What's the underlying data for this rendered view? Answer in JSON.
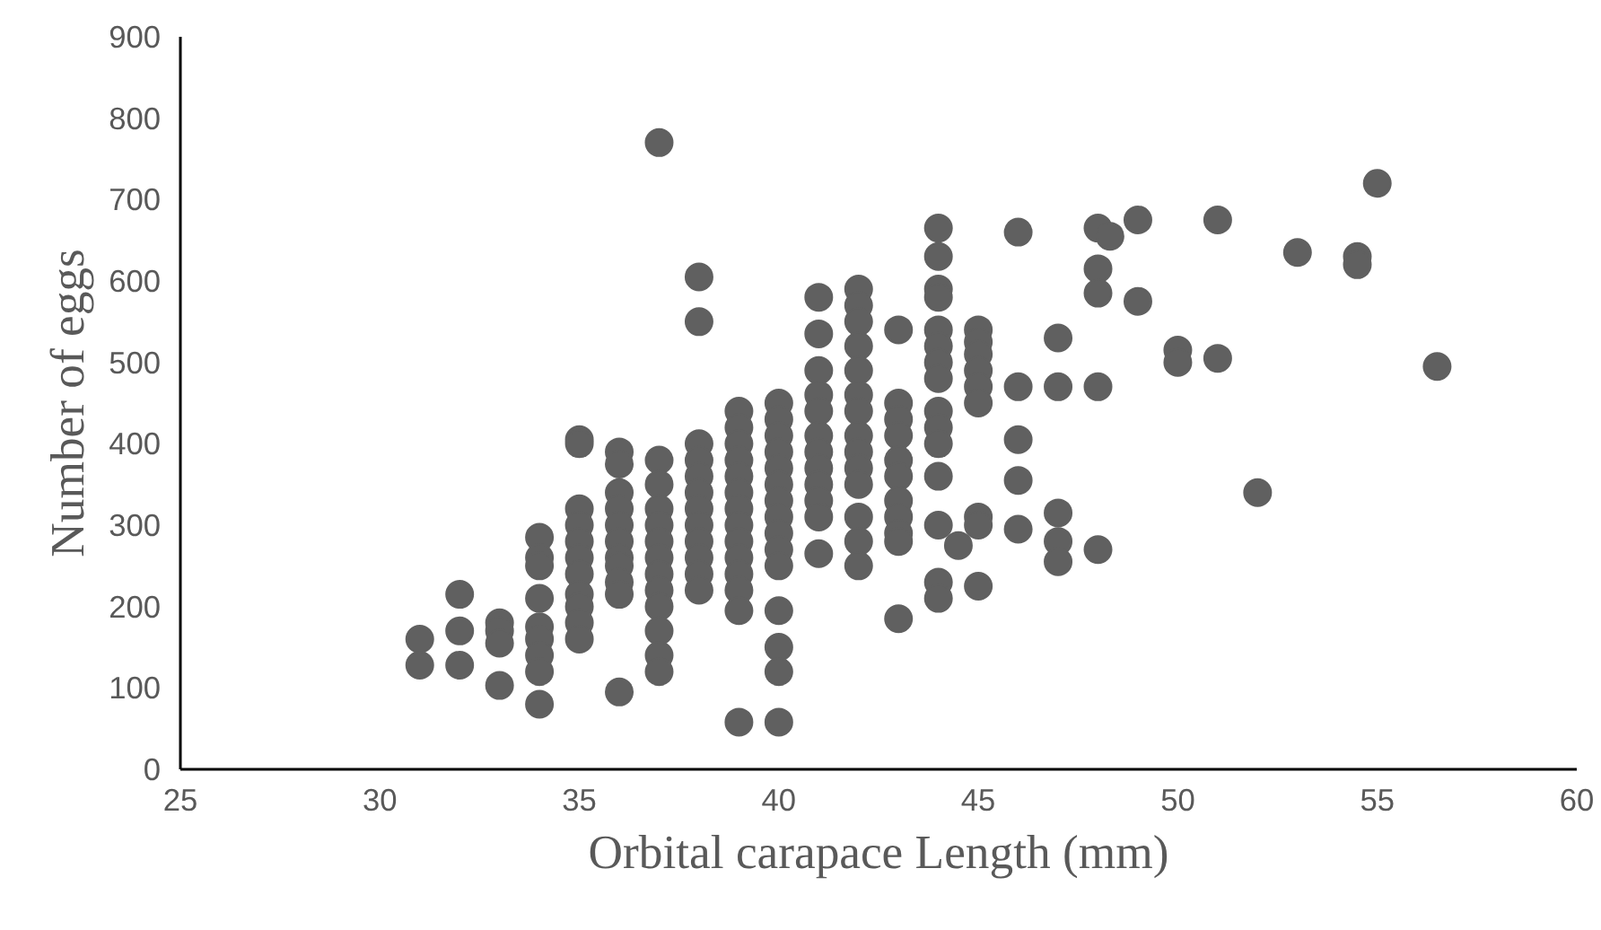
{
  "chart_data": {
    "type": "scatter",
    "xlabel": "Orbital carapace Length (mm)",
    "ylabel": "Number of eggs",
    "xlim": [
      25,
      60
    ],
    "ylim": [
      0,
      900
    ],
    "xticks": [
      25,
      30,
      35,
      40,
      45,
      50,
      55,
      60
    ],
    "yticks": [
      0,
      100,
      200,
      300,
      400,
      500,
      600,
      700,
      800,
      900
    ],
    "grid": false,
    "marker": "circle",
    "series": [
      {
        "color": "#606060",
        "x": [
          31,
          31,
          32,
          32,
          32,
          33,
          33,
          33,
          33,
          34,
          34,
          34,
          34,
          34,
          34,
          34,
          34,
          34,
          35,
          35,
          35,
          35,
          35,
          35,
          35,
          35,
          35,
          35,
          35,
          36,
          36,
          36,
          36,
          36,
          36,
          36,
          36,
          36,
          36,
          36,
          37,
          37,
          37,
          37,
          37,
          37,
          37,
          37,
          37,
          37,
          37,
          37,
          37,
          38,
          38,
          38,
          38,
          38,
          38,
          38,
          38,
          38,
          38,
          38,
          38,
          39,
          39,
          39,
          39,
          39,
          39,
          39,
          39,
          39,
          39,
          39,
          39,
          39,
          39,
          40,
          40,
          40,
          40,
          40,
          40,
          40,
          40,
          40,
          40,
          40,
          40,
          40,
          40,
          40,
          41,
          41,
          41,
          41,
          41,
          41,
          41,
          41,
          41,
          41,
          41,
          41,
          42,
          42,
          42,
          42,
          42,
          42,
          42,
          42,
          42,
          42,
          42,
          42,
          42,
          42,
          43,
          43,
          43,
          43,
          43,
          43,
          43,
          43,
          43,
          43,
          43,
          44,
          44,
          44,
          44,
          44,
          44,
          44,
          44,
          44,
          44,
          44,
          44,
          44,
          44,
          44,
          44.5,
          45,
          45,
          45,
          45,
          45,
          45,
          45,
          45,
          45,
          46,
          46,
          46,
          46,
          46,
          47,
          47,
          47,
          47,
          47,
          48,
          48,
          48,
          48,
          48,
          48.3,
          49,
          49,
          50,
          50,
          51,
          51,
          52,
          53,
          54.5,
          54.5,
          55,
          56.5
        ],
        "values": [
          160,
          128,
          215,
          170,
          128,
          180,
          170,
          155,
          103,
          285,
          260,
          250,
          210,
          175,
          160,
          140,
          120,
          80,
          405,
          400,
          320,
          300,
          280,
          260,
          240,
          215,
          200,
          180,
          160,
          390,
          375,
          340,
          320,
          300,
          280,
          260,
          250,
          230,
          215,
          95,
          770,
          380,
          350,
          320,
          300,
          280,
          260,
          240,
          220,
          200,
          170,
          140,
          120,
          605,
          550,
          400,
          380,
          360,
          340,
          320,
          300,
          280,
          260,
          240,
          220,
          440,
          420,
          400,
          380,
          360,
          340,
          320,
          300,
          280,
          260,
          240,
          220,
          195,
          58,
          450,
          430,
          410,
          390,
          370,
          350,
          330,
          310,
          290,
          270,
          250,
          195,
          150,
          120,
          58,
          580,
          535,
          490,
          460,
          440,
          410,
          390,
          370,
          350,
          330,
          310,
          265,
          590,
          570,
          550,
          520,
          490,
          460,
          440,
          410,
          390,
          370,
          350,
          310,
          280,
          250,
          540,
          450,
          430,
          410,
          380,
          360,
          330,
          310,
          290,
          280,
          185,
          665,
          630,
          590,
          580,
          540,
          520,
          500,
          480,
          440,
          420,
          400,
          360,
          300,
          230,
          210,
          275,
          540,
          525,
          510,
          490,
          470,
          450,
          310,
          300,
          225,
          660,
          470,
          405,
          355,
          295,
          530,
          470,
          315,
          280,
          255,
          665,
          615,
          585,
          470,
          270,
          655,
          675,
          575,
          515,
          500,
          675,
          505,
          340,
          635,
          630,
          620,
          720,
          495
        ]
      }
    ]
  }
}
